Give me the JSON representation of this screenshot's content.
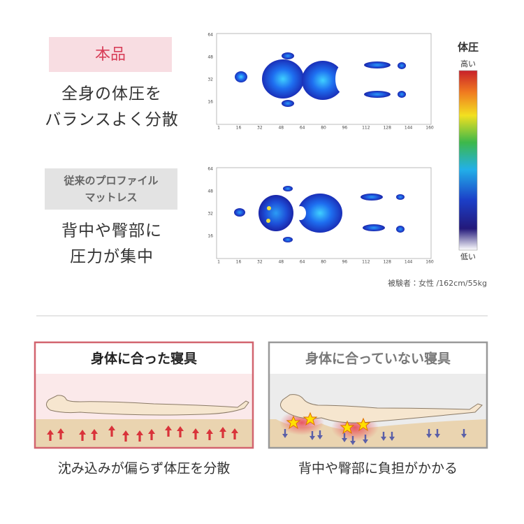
{
  "top": {
    "product": {
      "badge": "本品",
      "caption": [
        "全身の体圧を",
        "バランスよく分散"
      ]
    },
    "conventional": {
      "badge": [
        "従来のプロファイル",
        "マットレス"
      ],
      "caption": [
        "背中や臀部に",
        "圧力が集中"
      ]
    }
  },
  "maps": [
    {
      "yticks": [
        64,
        48,
        32,
        16
      ],
      "xticks": [
        1,
        16,
        32,
        48,
        64,
        80,
        96,
        112,
        128,
        144,
        160
      ]
    },
    {
      "yticks": [
        64,
        48,
        32,
        16
      ],
      "xticks": [
        1,
        16,
        32,
        48,
        64,
        80,
        96,
        112,
        128,
        144,
        160
      ]
    }
  ],
  "legend": {
    "title": "体圧",
    "high": "高い",
    "low": "低い"
  },
  "note": "被験者：女性 /162cm/55kg",
  "bottom": {
    "left": {
      "title": "身体に合った寝具",
      "caption": "沈み込みが偏らず体圧を分散"
    },
    "right": {
      "title": "身体に合っていない寝具",
      "caption": "背中や臀部に負担がかかる"
    }
  }
}
